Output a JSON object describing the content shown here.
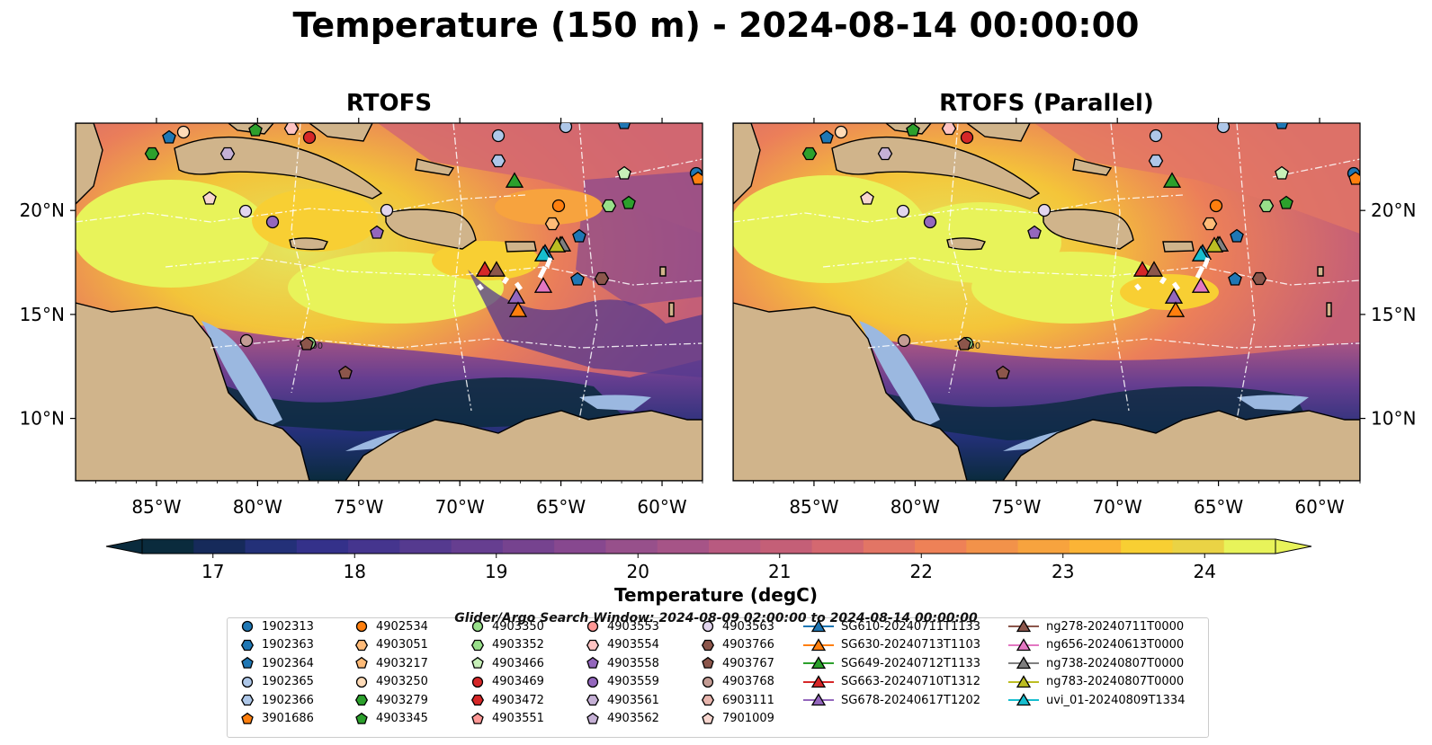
{
  "title": "Temperature (150 m) - 2024-08-14 00:00:00",
  "panels": [
    {
      "title": "RTOFS"
    },
    {
      "title": "RTOFS (Parallel)"
    }
  ],
  "axes": {
    "lon_ticks": [
      "85°W",
      "80°W",
      "75°W",
      "70°W",
      "65°W",
      "60°W"
    ],
    "lat_ticks": [
      "20°N",
      "15°N",
      "10°N"
    ],
    "contour_label": "-1000"
  },
  "colorbar": {
    "label": "Temperature (degC)",
    "ticks": [
      "17",
      "18",
      "19",
      "20",
      "21",
      "22",
      "23",
      "24"
    ],
    "range": [
      16.5,
      24.5
    ],
    "extend": "both",
    "colors": [
      "#0a2b3d",
      "#162a5a",
      "#233078",
      "#34318a",
      "#45358e",
      "#553a8f",
      "#663e90",
      "#76438f",
      "#87488f",
      "#97508b",
      "#a65487",
      "#b85a80",
      "#c45f77",
      "#d46870",
      "#e27565",
      "#ee8157",
      "#f2924a",
      "#f7a33e",
      "#fbb436",
      "#f8cf33",
      "#ead345",
      "#e8f35a"
    ]
  },
  "legend": {
    "title": "Glider/Argo Search Window: 2024-08-09 02:00:00 to 2024-08-14 00:00:00",
    "columns": [
      [
        {
          "label": "1902313",
          "marker": "circle",
          "color": "#1f77b4"
        },
        {
          "label": "1902363",
          "marker": "hexagon",
          "color": "#1f77b4"
        },
        {
          "label": "1902364",
          "marker": "pentagon",
          "color": "#1f77b4"
        },
        {
          "label": "1902365",
          "marker": "circle",
          "color": "#aec7e8"
        },
        {
          "label": "1902366",
          "marker": "hexagon",
          "color": "#aec7e8"
        },
        {
          "label": "3901686",
          "marker": "pentagon",
          "color": "#ff7f0e"
        }
      ],
      [
        {
          "label": "4902534",
          "marker": "circle",
          "color": "#ff7f0e"
        },
        {
          "label": "4903051",
          "marker": "hexagon",
          "color": "#ffbb78"
        },
        {
          "label": "4903217",
          "marker": "pentagon",
          "color": "#ffbb78"
        },
        {
          "label": "4903250",
          "marker": "circle",
          "color": "#ffdbb8"
        },
        {
          "label": "4903279",
          "marker": "hexagon",
          "color": "#2ca02c"
        },
        {
          "label": "4903345",
          "marker": "pentagon",
          "color": "#2ca02c"
        }
      ],
      [
        {
          "label": "4903350",
          "marker": "circle",
          "color": "#98df8a"
        },
        {
          "label": "4903352",
          "marker": "hexagon",
          "color": "#98df8a"
        },
        {
          "label": "4903466",
          "marker": "pentagon",
          "color": "#c7f0b8"
        },
        {
          "label": "4903469",
          "marker": "circle",
          "color": "#d62728"
        },
        {
          "label": "4903472",
          "marker": "hexagon",
          "color": "#d62728"
        },
        {
          "label": "4903551",
          "marker": "pentagon",
          "color": "#ff9896"
        }
      ],
      [
        {
          "label": "4903553",
          "marker": "circle",
          "color": "#ff9896"
        },
        {
          "label": "4903554",
          "marker": "hexagon",
          "color": "#ffc4c3"
        },
        {
          "label": "4903558",
          "marker": "pentagon",
          "color": "#9467bd"
        },
        {
          "label": "4903559",
          "marker": "circle",
          "color": "#9467bd"
        },
        {
          "label": "4903561",
          "marker": "hexagon",
          "color": "#c5b0d5"
        },
        {
          "label": "4903562",
          "marker": "pentagon",
          "color": "#c5b0d5"
        }
      ],
      [
        {
          "label": "4903563",
          "marker": "circle",
          "color": "#e2d5ee"
        },
        {
          "label": "4903766",
          "marker": "hexagon",
          "color": "#8c564b"
        },
        {
          "label": "4903767",
          "marker": "pentagon",
          "color": "#8c564b"
        },
        {
          "label": "4903768",
          "marker": "circle",
          "color": "#c49c94"
        },
        {
          "label": "6903111",
          "marker": "hexagon",
          "color": "#e7b5ad"
        },
        {
          "label": "7901009",
          "marker": "pentagon",
          "color": "#f7d6cf"
        }
      ],
      [
        {
          "label": "SG610-20240711T1133",
          "marker": "triangle",
          "color": "#1f77b4"
        },
        {
          "label": "SG630-20240713T1103",
          "marker": "triangle",
          "color": "#ff7f0e"
        },
        {
          "label": "SG649-20240712T1133",
          "marker": "triangle",
          "color": "#2ca02c"
        },
        {
          "label": "SG663-20240710T1312",
          "marker": "triangle",
          "color": "#d62728"
        },
        {
          "label": "SG678-20240617T1202",
          "marker": "triangle",
          "color": "#9467bd"
        }
      ],
      [
        {
          "label": "ng278-20240711T0000",
          "marker": "triangle",
          "color": "#8c564b"
        },
        {
          "label": "ng656-20240613T0000",
          "marker": "triangle",
          "color": "#e377c2"
        },
        {
          "label": "ng738-20240807T0000",
          "marker": "triangle",
          "color": "#7f7f7f"
        },
        {
          "label": "ng783-20240807T0000",
          "marker": "triangle",
          "color": "#bcbd22"
        },
        {
          "label": "uvi_01-20240809T1334",
          "marker": "triangle",
          "color": "#17becf"
        }
      ]
    ]
  }
}
